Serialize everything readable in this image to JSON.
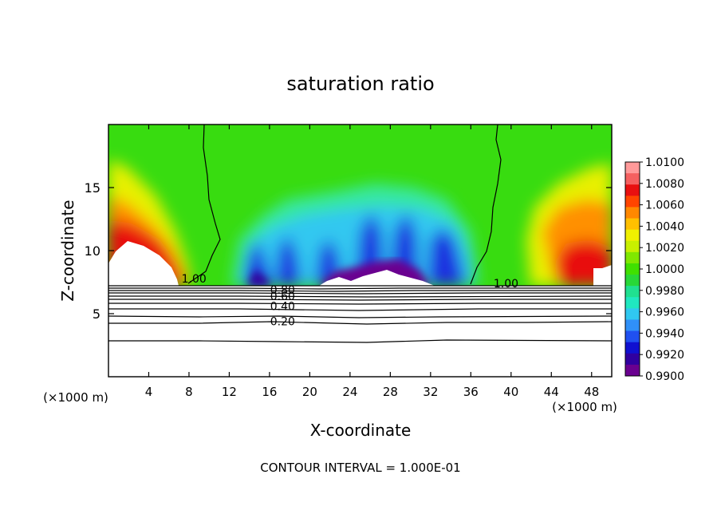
{
  "chart_data": {
    "type": "heatmap",
    "title": "saturation ratio",
    "xlabel": "X-coordinate",
    "ylabel": "Z-coordinate",
    "x_unit": "(×1000 m)",
    "x_unit_right": "(×1000 m)",
    "xlim": [
      0,
      50
    ],
    "ylim": [
      0,
      20
    ],
    "x_ticks": [
      4,
      8,
      12,
      16,
      20,
      24,
      28,
      32,
      36,
      40,
      44,
      48
    ],
    "y_ticks": [
      5,
      10,
      15
    ],
    "colorbar": {
      "min": 0.99,
      "max": 1.01,
      "labels": [
        "1.0100",
        "1.0080",
        "1.0060",
        "1.0040",
        "1.0020",
        "1.0000",
        "0.9980",
        "0.9960",
        "0.9940",
        "0.9920",
        "0.9900"
      ],
      "colors": [
        "#ff9a9a",
        "#f56060",
        "#e81010",
        "#ff4500",
        "#ff8800",
        "#ffc000",
        "#f0f000",
        "#c8f000",
        "#80e800",
        "#40e000",
        "#28d838",
        "#20e090",
        "#20e8c0",
        "#30c8f0",
        "#3090f8",
        "#2050f0",
        "#1010d0",
        "#3000a0",
        "#6a0090"
      ]
    },
    "contour_labels": [
      {
        "text": "1.00",
        "x": 8.5,
        "z": 7.8
      },
      {
        "text": "1.00",
        "x": 39.5,
        "z": 7.4
      },
      {
        "text": "0.80",
        "x": 17.3,
        "z": 6.9
      },
      {
        "text": "0.60",
        "x": 17.3,
        "z": 6.4
      },
      {
        "text": "0.40",
        "x": 17.3,
        "z": 5.6
      },
      {
        "text": "0.20",
        "x": 17.3,
        "z": 4.4
      }
    ],
    "annotation": "CONTOUR INTERVAL = 1.000E-01"
  }
}
